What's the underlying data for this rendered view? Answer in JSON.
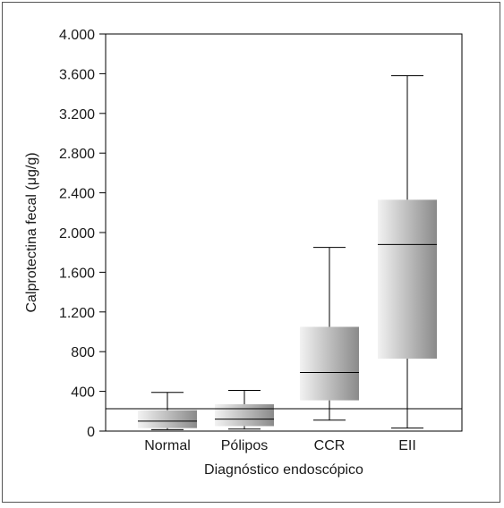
{
  "chart_data": {
    "type": "boxplot",
    "xlabel": "Diagnóstico endoscópico",
    "ylabel": "Calprotectina fecal (μg/g)",
    "ylim": [
      0,
      4000
    ],
    "yticks": [
      0,
      400,
      800,
      1200,
      1600,
      2000,
      2400,
      2800,
      3200,
      3600,
      4000
    ],
    "ytick_labels": [
      "0",
      "400",
      "800",
      "1.200",
      "1.600",
      "2.000",
      "2.400",
      "2.800",
      "3.200",
      "3.600",
      "4.000"
    ],
    "categories": [
      "Normal",
      "Pólipos",
      "CCR",
      "EII"
    ],
    "boxes": [
      {
        "min": 15,
        "q1": 30,
        "median": 100,
        "q3": 210,
        "max": 390
      },
      {
        "min": 20,
        "q1": 50,
        "median": 120,
        "q3": 270,
        "max": 410
      },
      {
        "min": 110,
        "q1": 310,
        "median": 590,
        "q3": 1050,
        "max": 1850
      },
      {
        "min": 30,
        "q1": 730,
        "median": 1880,
        "q3": 2330,
        "max": 3580
      }
    ],
    "reference_line": 225,
    "grid": false,
    "colors": {
      "box_light": "#f2f2f2",
      "box_dark": "#8a8a8a",
      "line": "#000000"
    }
  }
}
